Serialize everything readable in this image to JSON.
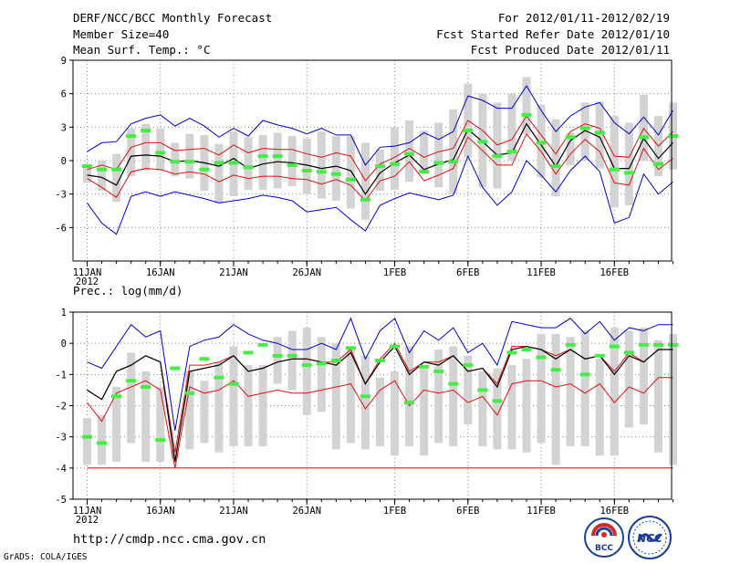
{
  "header": {
    "title": "DERF/NCC/BCC Monthly Forecast",
    "member_size": "Member Size=40",
    "variable": "Mean Surf. Temp.: °C",
    "period": "For 2012/01/11-2012/02/19",
    "fcst_started": "Fcst Started Refer Date 2012/01/10",
    "fcst_produced": "Fcst Produced Date 2012/01/11"
  },
  "precip_label": "Prec.: log(mm/d)",
  "footer": {
    "url": "http://cmdp.ncc.cma.gov.cn",
    "grads": "GrADS: COLA/IGES",
    "logo_bcc": "BCC",
    "logo_ncc": "NCC"
  },
  "colors": {
    "box": "#d3d3d3",
    "spread": "#0000cc",
    "ci": "#dd1111",
    "mean": "#000000",
    "obs": "#44ee44",
    "grid": "#888888"
  },
  "chart_data": [
    {
      "type": "box",
      "title": "Mean Surf. Temp.: °C",
      "ylim": [
        -9,
        9
      ],
      "yticks": [
        -6,
        -3,
        0,
        3,
        6,
        9
      ],
      "x_ticks": [
        {
          "day": 0,
          "label": "11JAN",
          "sub": "2012"
        },
        {
          "day": 5,
          "label": "16JAN"
        },
        {
          "day": 10,
          "label": "21JAN"
        },
        {
          "day": 15,
          "label": "26JAN"
        },
        {
          "day": 21,
          "label": "1FEB"
        },
        {
          "day": 26,
          "label": "6FEB"
        },
        {
          "day": 31,
          "label": "11FEB"
        },
        {
          "day": 36,
          "label": "16FEB"
        }
      ],
      "box_top": [
        -0.3,
        0.0,
        0.6,
        2.9,
        3.3,
        2.9,
        1.6,
        2.4,
        2.3,
        1.5,
        2.6,
        2.1,
        2.3,
        2.5,
        2.2,
        2.0,
        2.6,
        2.2,
        2.2,
        1.6,
        1.0,
        3.0,
        3.6,
        2.7,
        3.4,
        4.6,
        6.9,
        6.0,
        5.2,
        6.0,
        7.5,
        5.0,
        3.7,
        2.5,
        5.2,
        5.3,
        4.0,
        3.4,
        5.9,
        4.0,
        5.2
      ],
      "box_bottom": [
        -2.0,
        -2.7,
        -3.7,
        -1.4,
        -0.9,
        -0.9,
        -1.4,
        -1.6,
        -2.7,
        -3.8,
        -3.2,
        -2.6,
        -2.6,
        -2.5,
        -2.3,
        -3.0,
        -3.4,
        -3.6,
        -4.3,
        -5.3,
        -2.7,
        -2.6,
        -1.9,
        -1.1,
        -2.4,
        -3.0,
        0.3,
        -2.4,
        -2.5,
        0.0,
        2.4,
        -1.5,
        -3.2,
        -0.4,
        0.0,
        -0.7,
        -4.2,
        -4.0,
        0.0,
        -1.4,
        -0.8
      ],
      "max": [
        0.8,
        1.6,
        1.7,
        3.3,
        3.8,
        4.1,
        3.1,
        3.8,
        3.1,
        2.1,
        2.9,
        2.2,
        3.6,
        3.2,
        2.9,
        2.4,
        2.9,
        2.3,
        2.3,
        -0.4,
        1.2,
        1.3,
        1.6,
        2.5,
        1.9,
        2.6,
        5.8,
        5.4,
        4.7,
        4.7,
        6.7,
        4.5,
        2.6,
        4.0,
        4.8,
        5.2,
        3.4,
        2.4,
        3.9,
        2.3,
        4.5
      ],
      "ci_upper": [
        -0.8,
        -0.4,
        -0.8,
        1.2,
        1.6,
        1.6,
        0.9,
        1.0,
        1.1,
        0.5,
        1.4,
        0.7,
        1.1,
        1.0,
        1.0,
        0.6,
        0.3,
        0.7,
        0.4,
        -1.8,
        -0.3,
        0.3,
        1.1,
        0.3,
        0.8,
        1.1,
        3.6,
        2.7,
        1.4,
        1.9,
        4.0,
        2.3,
        0.6,
        2.6,
        3.3,
        2.9,
        0.4,
        0.3,
        2.9,
        1.3,
        2.6
      ],
      "mean": [
        -1.3,
        -1.5,
        -2.2,
        0.4,
        0.5,
        0.4,
        -0.1,
        0.0,
        -0.2,
        -0.5,
        0.2,
        -0.7,
        -0.3,
        -0.1,
        -0.2,
        -0.4,
        -0.7,
        -0.5,
        -0.9,
        -3.0,
        -1.1,
        -0.2,
        0.5,
        -0.8,
        -0.3,
        0.1,
        2.8,
        1.7,
        0.5,
        0.7,
        3.3,
        1.4,
        -0.5,
        1.8,
        2.7,
        2.1,
        -0.7,
        -0.7,
        2.0,
        0.2,
        1.6
      ],
      "ci_lower": [
        -1.6,
        -2.4,
        -3.3,
        -1.0,
        -0.7,
        -0.8,
        -1.2,
        -1.0,
        -1.2,
        -1.9,
        -1.3,
        -1.6,
        -1.4,
        -1.4,
        -1.6,
        -1.7,
        -2.1,
        -1.7,
        -2.2,
        -3.6,
        -1.8,
        -1.4,
        -0.1,
        -1.8,
        -1.3,
        -0.7,
        2.1,
        0.9,
        -0.4,
        -0.4,
        2.4,
        0.8,
        -1.2,
        0.6,
        1.9,
        0.8,
        -2.0,
        -2.2,
        1.1,
        -0.8,
        0.2
      ],
      "min": [
        -3.8,
        -5.6,
        -6.6,
        -3.2,
        -2.8,
        -3.2,
        -2.8,
        -3.1,
        -3.4,
        -3.8,
        -3.6,
        -3.4,
        -3.1,
        -3.3,
        -3.6,
        -4.6,
        -4.4,
        -4.2,
        -5.3,
        -6.3,
        -4.0,
        -3.4,
        -2.9,
        -3.2,
        -3.5,
        -3.1,
        0.4,
        -2.4,
        -4.0,
        -2.8,
        0.0,
        -1.3,
        -2.8,
        -0.9,
        0.4,
        -1.0,
        -5.6,
        -5.1,
        -1.2,
        -3.0,
        -1.9
      ],
      "obs": [
        -0.5,
        -0.8,
        -0.8,
        2.2,
        2.7,
        0.7,
        -0.1,
        -0.1,
        -0.8,
        -0.2,
        -0.2,
        -0.6,
        0.4,
        0.4,
        -0.4,
        -0.9,
        -1.0,
        -1.2,
        -1.7,
        -3.5,
        -0.5,
        -0.3,
        0.6,
        -1.0,
        -0.2,
        -0.1,
        2.7,
        1.7,
        0.4,
        0.8,
        4.1,
        1.6,
        -0.5,
        2.1,
        2.9,
        2.5,
        -0.8,
        -1.1,
        2.1,
        -0.3,
        2.2
      ]
    },
    {
      "type": "box",
      "title": "Prec.: log(mm/d)",
      "ylim": [
        -5,
        1
      ],
      "yticks": [
        -5,
        -4,
        -3,
        -2,
        -1,
        0,
        1
      ],
      "x_ticks": [
        {
          "day": 0,
          "label": "11JAN",
          "sub": "2012"
        },
        {
          "day": 5,
          "label": "16JAN"
        },
        {
          "day": 10,
          "label": "21JAN"
        },
        {
          "day": 15,
          "label": "26JAN"
        },
        {
          "day": 21,
          "label": "1FEB"
        },
        {
          "day": 26,
          "label": "6FEB"
        },
        {
          "day": 31,
          "label": "11FEB"
        },
        {
          "day": 36,
          "label": "16FEB"
        }
      ],
      "box_top": [
        -2.4,
        -2.3,
        -1.4,
        -0.3,
        -0.9,
        -1.4,
        -3.4,
        -0.9,
        -1.2,
        -0.6,
        -0.1,
        -0.7,
        -0.7,
        0.2,
        0.4,
        0.5,
        0.2,
        0.0,
        -0.2,
        -0.4,
        -1.1,
        -0.9,
        -0.1,
        -0.8,
        -0.2,
        -0.1,
        -0.4,
        -0.9,
        -0.8,
        -0.7,
        -0.5,
        0.3,
        0.3,
        0.2,
        0.4,
        -0.5,
        0.5,
        0.4,
        0.5,
        0.1,
        0.3
      ],
      "box_bottom": [
        -3.9,
        -3.9,
        -3.8,
        -3.2,
        -3.8,
        -3.8,
        -3.7,
        -3.4,
        -3.2,
        -3.5,
        -3.3,
        -3.3,
        -3.3,
        -1.3,
        -1.5,
        -2.3,
        -2.2,
        -3.4,
        -3.2,
        -3.4,
        -3.3,
        -3.6,
        -3.3,
        -3.6,
        -3.2,
        -3.3,
        -2.6,
        -3.3,
        -3.4,
        -3.4,
        -3.5,
        -3.2,
        -3.9,
        -3.3,
        -3.3,
        -3.6,
        -3.6,
        -2.7,
        -2.6,
        -3.5,
        -3.9
      ],
      "max": [
        -0.6,
        -0.8,
        -0.1,
        0.6,
        0.2,
        0.4,
        -2.8,
        -0.1,
        0.1,
        0.2,
        0.6,
        0.3,
        0.1,
        0.0,
        -0.2,
        -0.2,
        0.0,
        -0.2,
        0.8,
        -0.5,
        0.4,
        0.8,
        -0.3,
        0.4,
        0.1,
        0.5,
        -0.3,
        0.0,
        -0.7,
        0.7,
        0.6,
        0.5,
        0.5,
        0.8,
        0.3,
        0.7,
        0.1,
        0.5,
        0.4,
        0.6,
        0.6
      ],
      "ci_upper": [
        -1.5,
        -1.8,
        -0.9,
        -0.7,
        -0.4,
        -0.6,
        -3.5,
        -0.7,
        -0.7,
        -0.6,
        -0.4,
        -0.9,
        -0.8,
        -0.6,
        -0.5,
        -0.5,
        -0.6,
        -0.6,
        -0.2,
        -1.3,
        -0.5,
        0.0,
        -0.9,
        -0.6,
        -0.6,
        -0.4,
        -0.9,
        -0.8,
        -1.3,
        -0.1,
        -0.1,
        -0.2,
        -0.4,
        -0.2,
        -0.5,
        -0.4,
        -0.9,
        -0.3,
        -0.6,
        -0.2,
        -0.2
      ],
      "mean": [
        -1.5,
        -1.8,
        -0.9,
        -0.7,
        -0.4,
        -0.6,
        -3.8,
        -0.9,
        -0.8,
        -0.7,
        -0.4,
        -0.9,
        -0.8,
        -0.6,
        -0.5,
        -0.5,
        -0.6,
        -0.7,
        -0.3,
        -1.3,
        -0.6,
        -0.1,
        -1.0,
        -0.6,
        -0.7,
        -0.4,
        -0.9,
        -0.8,
        -1.4,
        -0.2,
        -0.1,
        -0.2,
        -0.5,
        -0.2,
        -0.5,
        -0.4,
        -1.0,
        -0.4,
        -0.6,
        -0.2,
        -0.2
      ],
      "ci_lower": [
        -1.9,
        -2.5,
        -1.6,
        -1.4,
        -1.2,
        -1.5,
        -4.0,
        -1.4,
        -1.6,
        -1.5,
        -1.2,
        -1.7,
        -1.6,
        -1.5,
        -1.6,
        -1.6,
        -1.5,
        -1.4,
        -1.3,
        -2.1,
        -1.5,
        -1.2,
        -2.0,
        -1.5,
        -1.6,
        -1.5,
        -1.9,
        -1.7,
        -2.3,
        -1.3,
        -1.2,
        -1.2,
        -1.4,
        -1.3,
        -1.6,
        -1.3,
        -1.9,
        -1.4,
        -1.6,
        -1.1,
        -1.1
      ],
      "min": [
        -4.0,
        -4.0,
        -4.0,
        -4.0,
        -4.0,
        -4.0,
        -4.0,
        -4.0,
        -4.0,
        -4.0,
        -4.0,
        -4.0,
        -4.0,
        -4.0,
        -4.0,
        -4.0,
        -4.0,
        -4.0,
        -4.0,
        -4.0,
        -4.0,
        -4.0,
        -4.0,
        -4.0,
        -4.0,
        -4.0,
        -4.0,
        -4.0,
        -4.0,
        -4.0,
        -4.0,
        -4.0,
        -4.0,
        -4.0,
        -4.0,
        -4.0,
        -4.0,
        -4.0,
        -4.0,
        -4.0,
        -4.0
      ],
      "obs": [
        -3.0,
        -3.2,
        -1.7,
        -1.2,
        -1.4,
        -3.1,
        -0.8,
        -1.6,
        -0.5,
        -1.1,
        -1.3,
        -0.3,
        -0.05,
        -0.4,
        -0.4,
        -0.7,
        -0.65,
        -0.55,
        -0.15,
        -1.7,
        -0.55,
        -0.1,
        -1.9,
        -0.75,
        -0.9,
        -1.3,
        -0.7,
        -1.5,
        -1.85,
        -0.3,
        -0.2,
        -0.45,
        -0.85,
        -0.05,
        -1.0,
        -0.4,
        -0.1,
        -0.3,
        -0.05,
        -0.05,
        -0.05
      ]
    }
  ]
}
